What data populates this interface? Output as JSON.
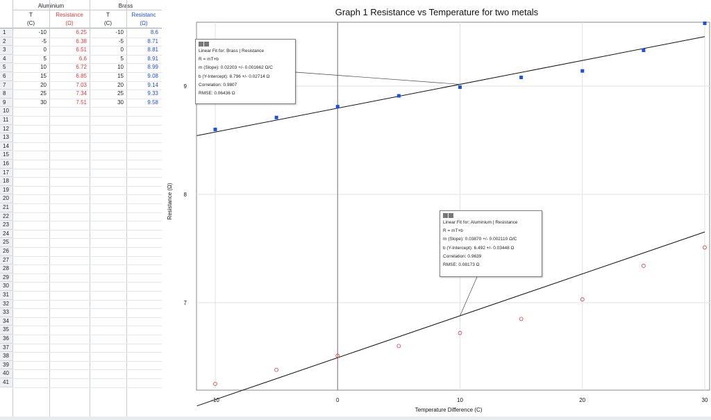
{
  "table": {
    "groups": [
      "Aluminium",
      "Brass"
    ],
    "columns": [
      {
        "name": "T",
        "unit": "(C)",
        "color": "#222222"
      },
      {
        "name": "Resistance",
        "unit": "(Ω)",
        "color": "#e0393e"
      },
      {
        "name": "T",
        "unit": "(C)",
        "color": "#222222"
      },
      {
        "name": "Resistanc",
        "unit": "(Ω)",
        "color": "#1f4fe0"
      }
    ],
    "rows": [
      [
        "-10",
        "6.25",
        "-10",
        "8.6"
      ],
      [
        "-5",
        "6.38",
        "-5",
        "8.71"
      ],
      [
        "0",
        "6.51",
        "0",
        "8.81"
      ],
      [
        "5",
        "6.6",
        "5",
        "8.91"
      ],
      [
        "10",
        "6.72",
        "10",
        "8.99"
      ],
      [
        "15",
        "6.85",
        "15",
        "9.08"
      ],
      [
        "20",
        "7.03",
        "20",
        "9.14"
      ],
      [
        "25",
        "7.34",
        "25",
        "9.33"
      ],
      [
        "30",
        "7.51",
        "30",
        "9.58"
      ]
    ],
    "row_numbers": [
      "1",
      "2",
      "3",
      "4",
      "5",
      "6",
      "7",
      "8",
      "9",
      "10",
      "11",
      "12",
      "13",
      "14",
      "15",
      "16",
      "17",
      "18",
      "19",
      "20",
      "21",
      "22",
      "23",
      "24",
      "25",
      "26",
      "27",
      "28",
      "29",
      "30",
      "31",
      "32",
      "33",
      "34",
      "35",
      "36",
      "37",
      "38",
      "39",
      "40",
      "41"
    ]
  },
  "chart_data": {
    "type": "scatter",
    "title": "Graph 1 Resistance vs Temperature for two metals",
    "xlabel": "Temperature Difference (C)",
    "ylabel": "Resistance (Ω)",
    "xlim": [
      -10,
      30
    ],
    "ylim": [
      6.2,
      9.6
    ],
    "xticks": [
      -10,
      0,
      10,
      20,
      30
    ],
    "yticks": [
      7,
      8,
      9
    ],
    "grid": true,
    "series": [
      {
        "name": "Brass",
        "color": "#1f4fe0",
        "marker": "square",
        "x": [
          -10,
          -5,
          0,
          5,
          10,
          15,
          20,
          25,
          30
        ],
        "y": [
          8.6,
          8.71,
          8.81,
          8.91,
          8.99,
          9.08,
          9.14,
          9.33,
          9.58
        ],
        "fit": {
          "slope": 0.02203,
          "intercept": 8.796
        }
      },
      {
        "name": "Aluminium",
        "color": "#e0393e",
        "marker": "circle",
        "x": [
          -10,
          -5,
          0,
          5,
          10,
          15,
          20,
          25,
          30
        ],
        "y": [
          6.25,
          6.38,
          6.51,
          6.6,
          6.72,
          6.85,
          7.03,
          7.34,
          7.51
        ],
        "fit": {
          "slope": 0.0387,
          "intercept": 6.492
        }
      }
    ],
    "annotations": [
      {
        "id": "brass",
        "lines": [
          "Linear Fit for: Brass | Resistance",
          "R = mT+b",
          "m (Slope): 0.02203 +/- 0.001662 Ω/C",
          "b (Y-Intercept): 8.796 +/- 0.02714 Ω",
          "Correlation: 0.9807",
          "RMSE: 0.06436 Ω"
        ]
      },
      {
        "id": "aluminium",
        "lines": [
          "Linear Fit for: Aluminium | Resistance",
          "R = mT+b",
          "m (Slope): 0.03870 +/- 0.002110 Ω/C",
          "b (Y-Intercept): 6.492 +/- 0.03448 Ω",
          "Correlation: 0.9639",
          "RMSE: 0.08173 Ω"
        ]
      }
    ]
  }
}
